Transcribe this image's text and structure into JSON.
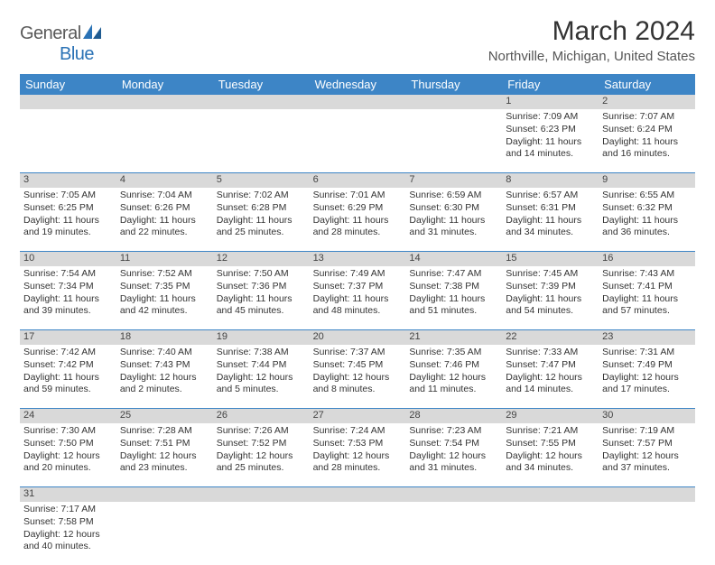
{
  "logo": {
    "word1": "General",
    "word2": "Blue"
  },
  "title": "March 2024",
  "location": "Northville, Michigan, United States",
  "colors": {
    "header_bg": "#3d85c6",
    "header_fg": "#ffffff",
    "daynum_bg": "#d9d9d9",
    "rule": "#3d85c6"
  },
  "dayNames": [
    "Sunday",
    "Monday",
    "Tuesday",
    "Wednesday",
    "Thursday",
    "Friday",
    "Saturday"
  ],
  "weeks": [
    [
      null,
      null,
      null,
      null,
      null,
      {
        "n": "1",
        "sunrise": "Sunrise: 7:09 AM",
        "sunset": "Sunset: 6:23 PM",
        "daylight": "Daylight: 11 hours and 14 minutes."
      },
      {
        "n": "2",
        "sunrise": "Sunrise: 7:07 AM",
        "sunset": "Sunset: 6:24 PM",
        "daylight": "Daylight: 11 hours and 16 minutes."
      }
    ],
    [
      {
        "n": "3",
        "sunrise": "Sunrise: 7:05 AM",
        "sunset": "Sunset: 6:25 PM",
        "daylight": "Daylight: 11 hours and 19 minutes."
      },
      {
        "n": "4",
        "sunrise": "Sunrise: 7:04 AM",
        "sunset": "Sunset: 6:26 PM",
        "daylight": "Daylight: 11 hours and 22 minutes."
      },
      {
        "n": "5",
        "sunrise": "Sunrise: 7:02 AM",
        "sunset": "Sunset: 6:28 PM",
        "daylight": "Daylight: 11 hours and 25 minutes."
      },
      {
        "n": "6",
        "sunrise": "Sunrise: 7:01 AM",
        "sunset": "Sunset: 6:29 PM",
        "daylight": "Daylight: 11 hours and 28 minutes."
      },
      {
        "n": "7",
        "sunrise": "Sunrise: 6:59 AM",
        "sunset": "Sunset: 6:30 PM",
        "daylight": "Daylight: 11 hours and 31 minutes."
      },
      {
        "n": "8",
        "sunrise": "Sunrise: 6:57 AM",
        "sunset": "Sunset: 6:31 PM",
        "daylight": "Daylight: 11 hours and 34 minutes."
      },
      {
        "n": "9",
        "sunrise": "Sunrise: 6:55 AM",
        "sunset": "Sunset: 6:32 PM",
        "daylight": "Daylight: 11 hours and 36 minutes."
      }
    ],
    [
      {
        "n": "10",
        "sunrise": "Sunrise: 7:54 AM",
        "sunset": "Sunset: 7:34 PM",
        "daylight": "Daylight: 11 hours and 39 minutes."
      },
      {
        "n": "11",
        "sunrise": "Sunrise: 7:52 AM",
        "sunset": "Sunset: 7:35 PM",
        "daylight": "Daylight: 11 hours and 42 minutes."
      },
      {
        "n": "12",
        "sunrise": "Sunrise: 7:50 AM",
        "sunset": "Sunset: 7:36 PM",
        "daylight": "Daylight: 11 hours and 45 minutes."
      },
      {
        "n": "13",
        "sunrise": "Sunrise: 7:49 AM",
        "sunset": "Sunset: 7:37 PM",
        "daylight": "Daylight: 11 hours and 48 minutes."
      },
      {
        "n": "14",
        "sunrise": "Sunrise: 7:47 AM",
        "sunset": "Sunset: 7:38 PM",
        "daylight": "Daylight: 11 hours and 51 minutes."
      },
      {
        "n": "15",
        "sunrise": "Sunrise: 7:45 AM",
        "sunset": "Sunset: 7:39 PM",
        "daylight": "Daylight: 11 hours and 54 minutes."
      },
      {
        "n": "16",
        "sunrise": "Sunrise: 7:43 AM",
        "sunset": "Sunset: 7:41 PM",
        "daylight": "Daylight: 11 hours and 57 minutes."
      }
    ],
    [
      {
        "n": "17",
        "sunrise": "Sunrise: 7:42 AM",
        "sunset": "Sunset: 7:42 PM",
        "daylight": "Daylight: 11 hours and 59 minutes."
      },
      {
        "n": "18",
        "sunrise": "Sunrise: 7:40 AM",
        "sunset": "Sunset: 7:43 PM",
        "daylight": "Daylight: 12 hours and 2 minutes."
      },
      {
        "n": "19",
        "sunrise": "Sunrise: 7:38 AM",
        "sunset": "Sunset: 7:44 PM",
        "daylight": "Daylight: 12 hours and 5 minutes."
      },
      {
        "n": "20",
        "sunrise": "Sunrise: 7:37 AM",
        "sunset": "Sunset: 7:45 PM",
        "daylight": "Daylight: 12 hours and 8 minutes."
      },
      {
        "n": "21",
        "sunrise": "Sunrise: 7:35 AM",
        "sunset": "Sunset: 7:46 PM",
        "daylight": "Daylight: 12 hours and 11 minutes."
      },
      {
        "n": "22",
        "sunrise": "Sunrise: 7:33 AM",
        "sunset": "Sunset: 7:47 PM",
        "daylight": "Daylight: 12 hours and 14 minutes."
      },
      {
        "n": "23",
        "sunrise": "Sunrise: 7:31 AM",
        "sunset": "Sunset: 7:49 PM",
        "daylight": "Daylight: 12 hours and 17 minutes."
      }
    ],
    [
      {
        "n": "24",
        "sunrise": "Sunrise: 7:30 AM",
        "sunset": "Sunset: 7:50 PM",
        "daylight": "Daylight: 12 hours and 20 minutes."
      },
      {
        "n": "25",
        "sunrise": "Sunrise: 7:28 AM",
        "sunset": "Sunset: 7:51 PM",
        "daylight": "Daylight: 12 hours and 23 minutes."
      },
      {
        "n": "26",
        "sunrise": "Sunrise: 7:26 AM",
        "sunset": "Sunset: 7:52 PM",
        "daylight": "Daylight: 12 hours and 25 minutes."
      },
      {
        "n": "27",
        "sunrise": "Sunrise: 7:24 AM",
        "sunset": "Sunset: 7:53 PM",
        "daylight": "Daylight: 12 hours and 28 minutes."
      },
      {
        "n": "28",
        "sunrise": "Sunrise: 7:23 AM",
        "sunset": "Sunset: 7:54 PM",
        "daylight": "Daylight: 12 hours and 31 minutes."
      },
      {
        "n": "29",
        "sunrise": "Sunrise: 7:21 AM",
        "sunset": "Sunset: 7:55 PM",
        "daylight": "Daylight: 12 hours and 34 minutes."
      },
      {
        "n": "30",
        "sunrise": "Sunrise: 7:19 AM",
        "sunset": "Sunset: 7:57 PM",
        "daylight": "Daylight: 12 hours and 37 minutes."
      }
    ],
    [
      {
        "n": "31",
        "sunrise": "Sunrise: 7:17 AM",
        "sunset": "Sunset: 7:58 PM",
        "daylight": "Daylight: 12 hours and 40 minutes."
      },
      null,
      null,
      null,
      null,
      null,
      null
    ]
  ]
}
